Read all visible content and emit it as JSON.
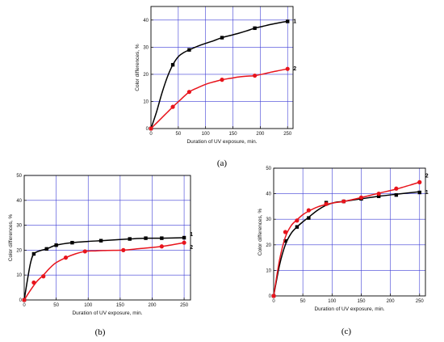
{
  "colors": {
    "series_1": "#000000",
    "series_2": "#e8141c",
    "grid": "#3f3fd6",
    "axes": "#000000"
  },
  "chart_data": [
    {
      "panel_label": "(a)",
      "type": "line",
      "xlabel": "Duration of UV exposure, min.",
      "ylabel": "Color differences, %",
      "xlim": [
        0,
        260
      ],
      "ylim": [
        0,
        45
      ],
      "xticks": [
        0,
        50,
        100,
        150,
        200,
        250
      ],
      "yticks": [
        0,
        10,
        20,
        30,
        40
      ],
      "grid": true,
      "series": [
        {
          "name": "1",
          "color": "#000000",
          "marker": "square",
          "x": [
            0,
            40,
            70,
            130,
            190,
            250
          ],
          "y": [
            0,
            23.5,
            29,
            33.5,
            37,
            39.5
          ],
          "curve_x": [
            0,
            10,
            20,
            30,
            40,
            50,
            60,
            70,
            85,
            100,
            115,
            130,
            145,
            160,
            175,
            190,
            205,
            220,
            235,
            250
          ],
          "curve_y": [
            0,
            6,
            13,
            19,
            23.5,
            26.5,
            28,
            29,
            30.3,
            31.4,
            32.4,
            33.5,
            34.3,
            35.1,
            36,
            37,
            37.7,
            38.4,
            39,
            39.5
          ]
        },
        {
          "name": "2",
          "color": "#e8141c",
          "marker": "circle",
          "x": [
            0,
            40,
            70,
            130,
            190,
            250
          ],
          "y": [
            0,
            8,
            13.5,
            18,
            19.5,
            22
          ],
          "curve_x": [
            0,
            10,
            20,
            30,
            40,
            55,
            70,
            85,
            100,
            115,
            130,
            145,
            160,
            175,
            190,
            205,
            220,
            235,
            250
          ],
          "curve_y": [
            0,
            2,
            4,
            6,
            8,
            10.8,
            13.5,
            15,
            16.3,
            17.2,
            18,
            18.5,
            19,
            19.3,
            19.5,
            20.1,
            20.8,
            21.4,
            22
          ]
        }
      ]
    },
    {
      "panel_label": "(b)",
      "type": "line",
      "xlabel": "Duration of UV exposure, min.",
      "ylabel": "Color differences, %",
      "xlim": [
        0,
        260
      ],
      "ylim": [
        0,
        50
      ],
      "xticks": [
        0,
        50,
        100,
        150,
        200,
        250
      ],
      "yticks": [
        0,
        10,
        20,
        30,
        40,
        50
      ],
      "grid": true,
      "series": [
        {
          "name": "1",
          "color": "#000000",
          "marker": "square",
          "x": [
            0,
            15,
            35,
            50,
            75,
            120,
            165,
            190,
            215,
            250
          ],
          "y": [
            0,
            18.5,
            20.5,
            22,
            23,
            23.8,
            24.5,
            24.8,
            24.8,
            25
          ],
          "curve_x": [
            0,
            5,
            10,
            15,
            25,
            35,
            50,
            75,
            100,
            120,
            145,
            165,
            190,
            215,
            250
          ],
          "curve_y": [
            0,
            8,
            15,
            18.5,
            19.8,
            20.5,
            22,
            23,
            23.5,
            23.8,
            24.2,
            24.5,
            24.8,
            24.8,
            25
          ]
        },
        {
          "name": "2",
          "color": "#e8141c",
          "marker": "circle",
          "x": [
            0,
            15,
            30,
            65,
            95,
            155,
            215,
            250
          ],
          "y": [
            0,
            7,
            9.5,
            17,
            19.5,
            20,
            21.5,
            23
          ],
          "curve_x": [
            0,
            10,
            20,
            30,
            40,
            50,
            65,
            80,
            95,
            110,
            130,
            155,
            180,
            215,
            250
          ],
          "curve_y": [
            0,
            4,
            7.5,
            10,
            12.8,
            15,
            17,
            18.5,
            19.5,
            19.7,
            19.9,
            20,
            20.6,
            21.5,
            23
          ]
        }
      ]
    },
    {
      "panel_label": "(c)",
      "type": "line",
      "xlabel": "Duration of UV exposure, min.",
      "ylabel": "Color differences, %",
      "xlim": [
        0,
        260
      ],
      "ylim": [
        0,
        50
      ],
      "xticks": [
        0,
        50,
        100,
        150,
        200,
        250
      ],
      "yticks": [
        0,
        10,
        20,
        30,
        40,
        50
      ],
      "grid": true,
      "series": [
        {
          "name": "1",
          "color": "#000000",
          "marker": "square",
          "x": [
            0,
            20,
            40,
            60,
            90,
            120,
            150,
            180,
            210,
            250
          ],
          "y": [
            0,
            21.5,
            27,
            30.5,
            36.5,
            37,
            38,
            39,
            39.5,
            40.5
          ],
          "curve_x": [
            0,
            10,
            20,
            30,
            40,
            50,
            60,
            75,
            90,
            105,
            120,
            150,
            180,
            210,
            250
          ],
          "curve_y": [
            0,
            12,
            20,
            24.5,
            27,
            29,
            30.8,
            33.5,
            35.5,
            36.6,
            37,
            38,
            39,
            39.8,
            40.8
          ]
        },
        {
          "name": "2",
          "color": "#e8141c",
          "marker": "circle",
          "x": [
            0,
            20,
            40,
            60,
            90,
            120,
            150,
            180,
            210,
            250
          ],
          "y": [
            0,
            25,
            29.5,
            33.5,
            36,
            37,
            38.5,
            40,
            42,
            44.5
          ],
          "curve_x": [
            0,
            10,
            20,
            30,
            40,
            50,
            60,
            75,
            90,
            105,
            120,
            150,
            180,
            210,
            250
          ],
          "curve_y": [
            0,
            14,
            23,
            27.5,
            29.8,
            31.8,
            33.2,
            34.8,
            35.8,
            36.5,
            37,
            38.5,
            40.2,
            41.8,
            44.5
          ]
        }
      ]
    }
  ]
}
